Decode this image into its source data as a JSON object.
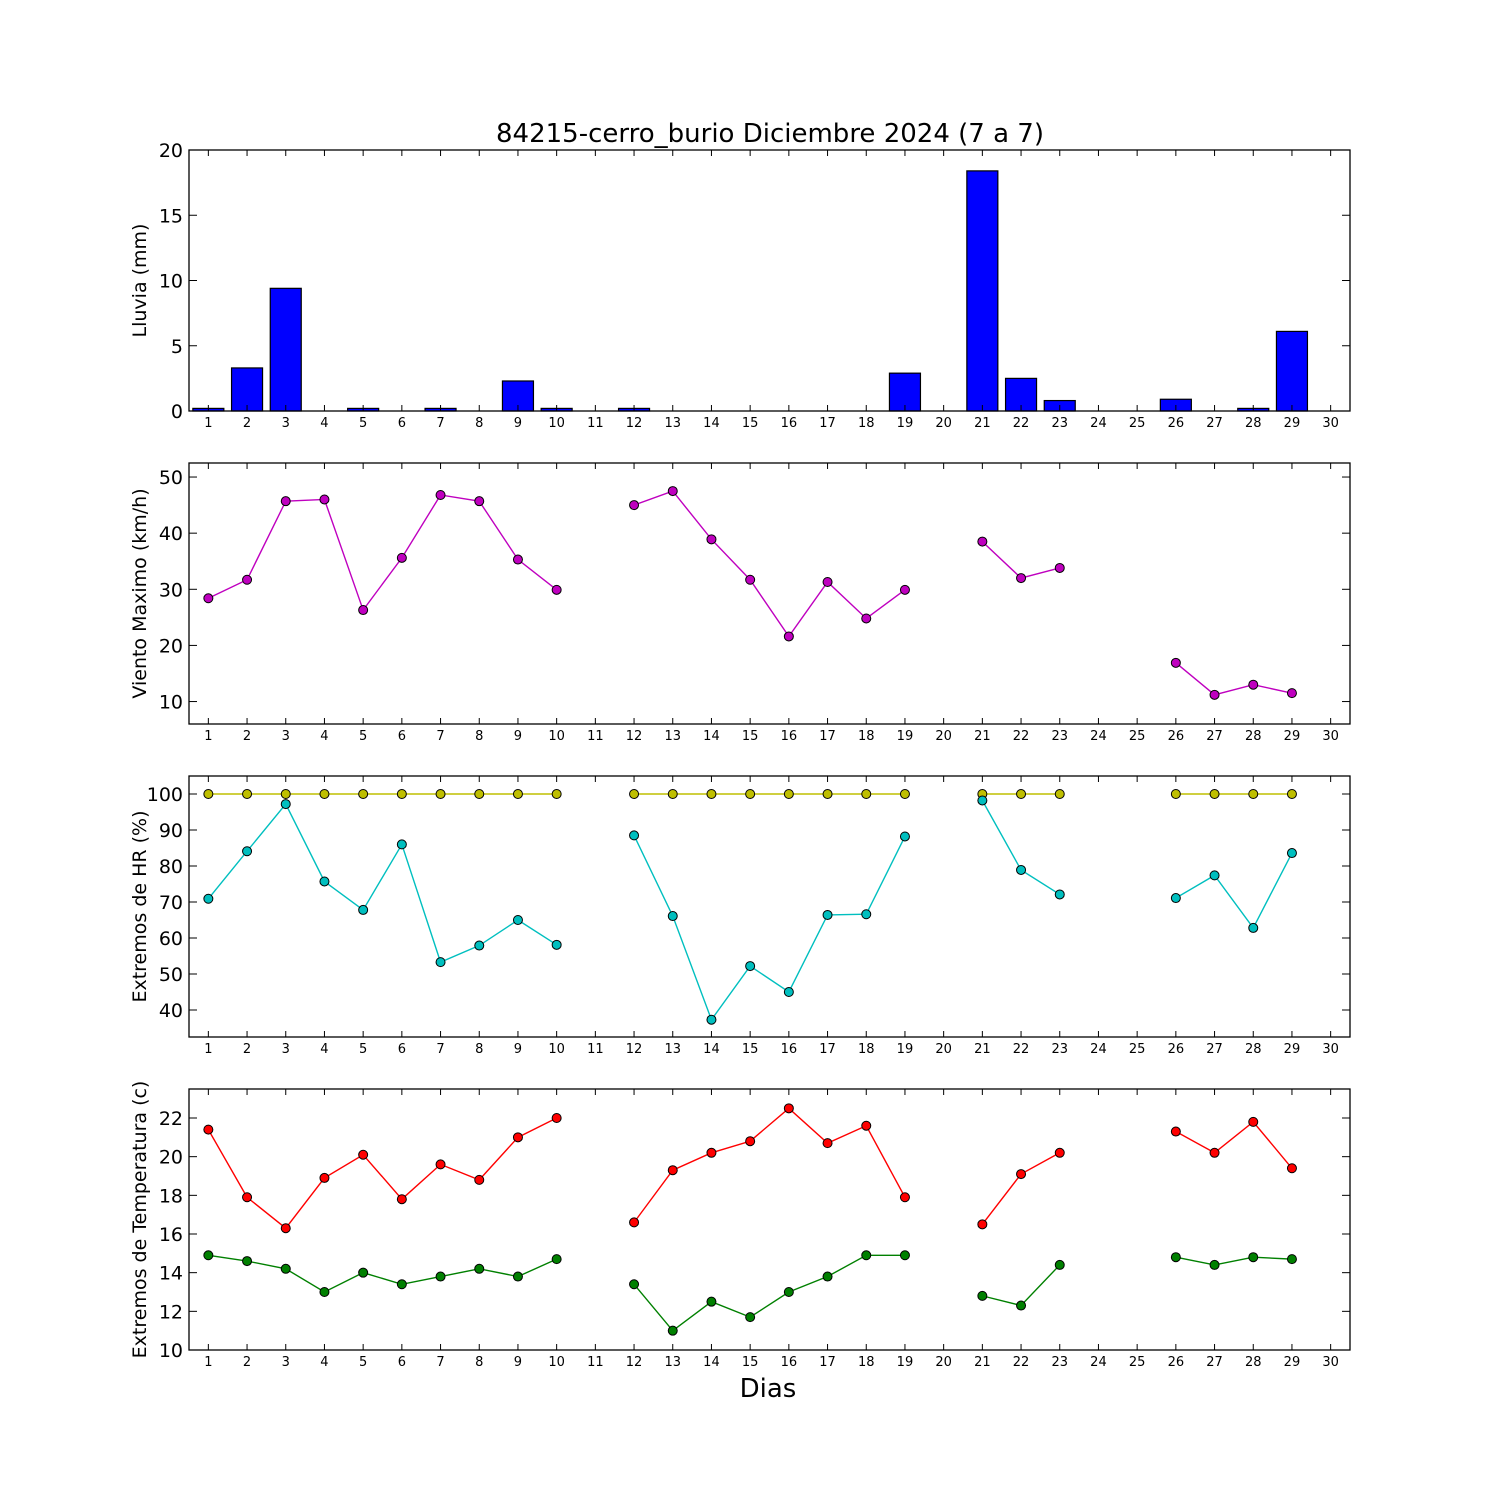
{
  "title": "84215-cerro_burio Diciembre 2024  (7 a 7)",
  "xlabel": "Dias",
  "colors": {
    "rain": "#0000ff",
    "wind": "#bf00bf",
    "hr_max": "#bfbf00",
    "hr_min": "#00bfbf",
    "temp_max": "#ff0000",
    "temp_min": "#008000"
  },
  "chart_data": [
    {
      "type": "bar",
      "ylabel": "Lluvia (mm)",
      "x": [
        1,
        2,
        3,
        4,
        5,
        6,
        7,
        8,
        9,
        10,
        11,
        12,
        13,
        14,
        15,
        16,
        17,
        18,
        19,
        20,
        21,
        22,
        23,
        24,
        25,
        26,
        27,
        28,
        29,
        30
      ],
      "xlim": [
        0.5,
        30.5
      ],
      "ylim": [
        0,
        20
      ],
      "yticks": [
        0,
        5,
        10,
        15,
        20
      ],
      "grid": false,
      "series": [
        {
          "color_key": "rain",
          "values": [
            0.2,
            3.3,
            9.4,
            0,
            0.2,
            0,
            0.2,
            0,
            2.3,
            0.2,
            0,
            0.2,
            0,
            0,
            0,
            0,
            0,
            0,
            2.9,
            0,
            18.4,
            2.5,
            0.8,
            0,
            0,
            0.9,
            0,
            0.2,
            6.1,
            0
          ]
        }
      ]
    },
    {
      "type": "line",
      "ylabel": "Viento Maximo (km/h)",
      "x": [
        1,
        2,
        3,
        4,
        5,
        6,
        7,
        8,
        9,
        10,
        11,
        12,
        13,
        14,
        15,
        16,
        17,
        18,
        19,
        20,
        21,
        22,
        23,
        24,
        25,
        26,
        27,
        28,
        29,
        30
      ],
      "xlim": [
        0.5,
        30.5
      ],
      "ylim": [
        6,
        52.5
      ],
      "yticks": [
        10,
        20,
        30,
        40,
        50
      ],
      "grid": false,
      "series": [
        {
          "color_key": "wind",
          "values": [
            28.4,
            31.7,
            45.7,
            46.0,
            26.3,
            35.6,
            46.8,
            45.7,
            35.3,
            29.9,
            null,
            45.0,
            47.5,
            38.9,
            31.7,
            21.6,
            31.3,
            24.8,
            29.9,
            null,
            38.5,
            32.0,
            33.8,
            null,
            null,
            16.9,
            11.2,
            13.0,
            11.5,
            null
          ]
        }
      ]
    },
    {
      "type": "line",
      "ylabel": "Extremos de HR (%)",
      "x": [
        1,
        2,
        3,
        4,
        5,
        6,
        7,
        8,
        9,
        10,
        11,
        12,
        13,
        14,
        15,
        16,
        17,
        18,
        19,
        20,
        21,
        22,
        23,
        24,
        25,
        26,
        27,
        28,
        29,
        30
      ],
      "xlim": [
        0.5,
        30.5
      ],
      "ylim": [
        32.5,
        105
      ],
      "yticks": [
        40,
        50,
        60,
        70,
        80,
        90,
        100
      ],
      "grid": false,
      "series": [
        {
          "color_key": "hr_max",
          "values": [
            100,
            100,
            100,
            100,
            100,
            100,
            100,
            100,
            100,
            100,
            null,
            100,
            100,
            100,
            100,
            100,
            100,
            100,
            100,
            null,
            100,
            100,
            100,
            null,
            null,
            100,
            100,
            100,
            100,
            null
          ]
        },
        {
          "color_key": "hr_min",
          "values": [
            70.9,
            84.1,
            97.2,
            75.7,
            67.8,
            86.0,
            53.3,
            57.9,
            65.0,
            58.1,
            null,
            88.5,
            66.1,
            37.3,
            52.2,
            45.0,
            66.4,
            66.6,
            88.2,
            null,
            98.2,
            78.9,
            72.1,
            null,
            null,
            71.1,
            77.4,
            62.8,
            83.6,
            null
          ]
        }
      ]
    },
    {
      "type": "line",
      "ylabel": "Extremos de Temperatura (c)",
      "x": [
        1,
        2,
        3,
        4,
        5,
        6,
        7,
        8,
        9,
        10,
        11,
        12,
        13,
        14,
        15,
        16,
        17,
        18,
        19,
        20,
        21,
        22,
        23,
        24,
        25,
        26,
        27,
        28,
        29,
        30
      ],
      "xlim": [
        0.5,
        30.5
      ],
      "ylim": [
        10,
        23.5
      ],
      "yticks": [
        10,
        12,
        14,
        16,
        18,
        20,
        22
      ],
      "grid": false,
      "series": [
        {
          "color_key": "temp_max",
          "values": [
            21.4,
            17.9,
            16.3,
            18.9,
            20.1,
            17.8,
            19.6,
            18.8,
            21.0,
            22.0,
            null,
            16.6,
            19.3,
            20.2,
            20.8,
            22.5,
            20.7,
            21.6,
            17.9,
            null,
            16.5,
            19.1,
            20.2,
            null,
            null,
            21.3,
            20.2,
            21.8,
            19.4,
            null
          ]
        },
        {
          "color_key": "temp_min",
          "values": [
            14.9,
            14.6,
            14.2,
            13.0,
            14.0,
            13.4,
            13.8,
            14.2,
            13.8,
            14.7,
            null,
            13.4,
            11.0,
            12.5,
            11.7,
            13.0,
            13.8,
            14.9,
            14.9,
            null,
            12.8,
            12.3,
            14.4,
            null,
            null,
            14.8,
            14.4,
            14.8,
            14.7,
            null
          ]
        }
      ]
    }
  ]
}
